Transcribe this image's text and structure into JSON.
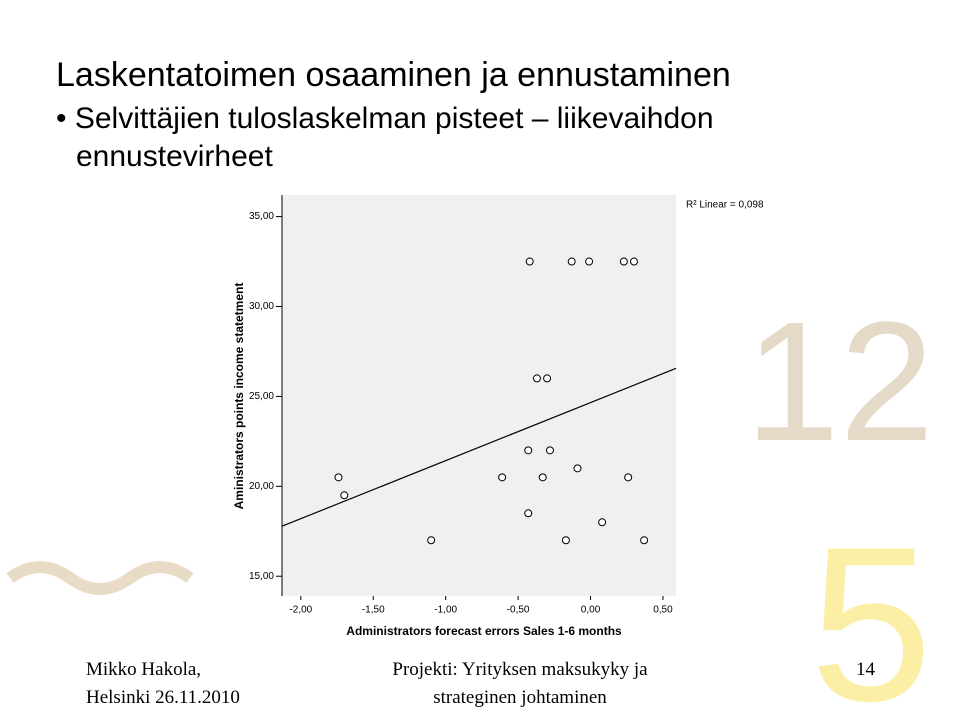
{
  "slide": {
    "title": "Laskentatoimen osaaminen ja ennustaminen",
    "bullet": "Selvittäjien tuloslaskelman pisteet – liikevaihdon ennustevirheet",
    "footer_left": [
      "Mikko Hakola,",
      "Helsinki 26.11.2010"
    ],
    "footer_center": [
      "Projekti: Yrityksen maksukyky ja",
      "strateginen johtaminen"
    ],
    "page_number": "14"
  },
  "chart_data": {
    "type": "scatter",
    "x_label": "Administrators forecast errors Sales 1-6 months",
    "y_label": "Aministrators points income statetment",
    "annotation": "R² Linear = 0,098",
    "x": [
      -0.42,
      -0.13,
      -0.01,
      0.23,
      0.3,
      -0.37,
      -0.3,
      -0.43,
      -0.28,
      -0.09,
      -1.74,
      -1.7,
      -0.61,
      -0.33,
      0.26,
      -0.43,
      0.08,
      -1.1,
      -0.17,
      0.37
    ],
    "values": [
      32.5,
      32.5,
      32.5,
      32.5,
      32.5,
      26,
      26,
      22,
      22,
      21,
      20.5,
      19.5,
      20.5,
      20.5,
      20.5,
      18.5,
      18,
      17,
      17,
      17
    ],
    "fit_line": {
      "x": [
        -2.13,
        0.59
      ],
      "y": [
        17.78,
        26.56
      ]
    },
    "xlim": [
      -2.13,
      0.59
    ],
    "ylim": [
      13.9,
      36.2
    ],
    "xticks": [
      {
        "value": -2,
        "label": "-2,00"
      },
      {
        "value": -1.5,
        "label": "-1,50"
      },
      {
        "value": -1,
        "label": "-1,00"
      },
      {
        "value": -0.5,
        "label": "-0,50"
      },
      {
        "value": 0,
        "label": "0,00"
      },
      {
        "value": 0.5,
        "label": "0,50"
      }
    ],
    "yticks": [
      {
        "value": 15,
        "label": "15,00"
      },
      {
        "value": 20,
        "label": "20,00"
      },
      {
        "value": 25,
        "label": "25,00"
      },
      {
        "value": 30,
        "label": "30,00"
      },
      {
        "value": 35,
        "label": "35,00"
      }
    ]
  }
}
